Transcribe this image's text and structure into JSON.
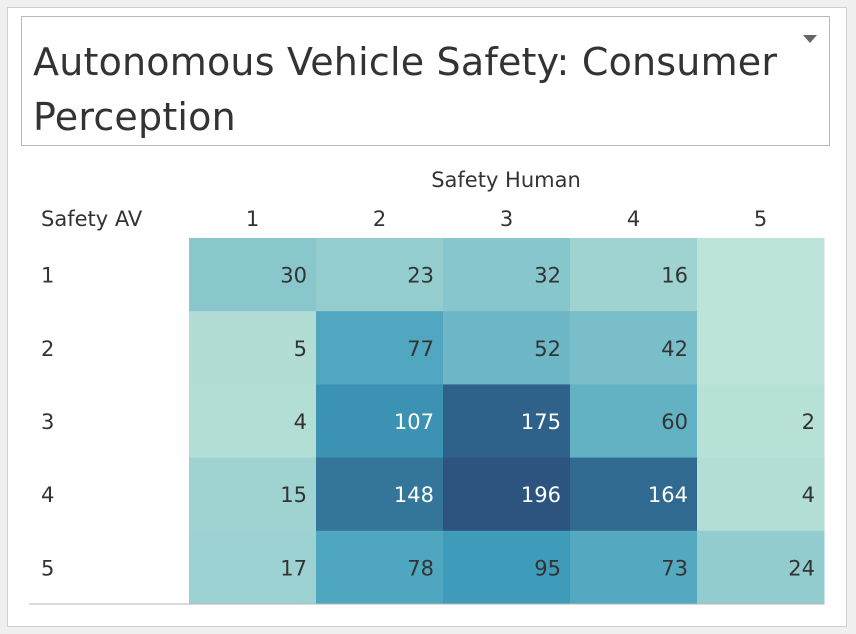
{
  "chart_data": {
    "type": "heatmap",
    "title": "Autonomous Vehicle Safety: Consumer Perception",
    "column_title": "Safety Human",
    "row_title": "Safety AV",
    "columns": [
      "1",
      "2",
      "3",
      "4",
      "5"
    ],
    "rows": [
      "1",
      "2",
      "3",
      "4",
      "5"
    ],
    "values": [
      [
        30,
        23,
        32,
        16,
        null
      ],
      [
        5,
        77,
        52,
        42,
        null
      ],
      [
        4,
        107,
        175,
        60,
        2
      ],
      [
        15,
        148,
        196,
        164,
        4
      ],
      [
        17,
        78,
        95,
        73,
        24
      ]
    ],
    "color_range": [
      "#bde4d8",
      "#2c547f"
    ]
  }
}
